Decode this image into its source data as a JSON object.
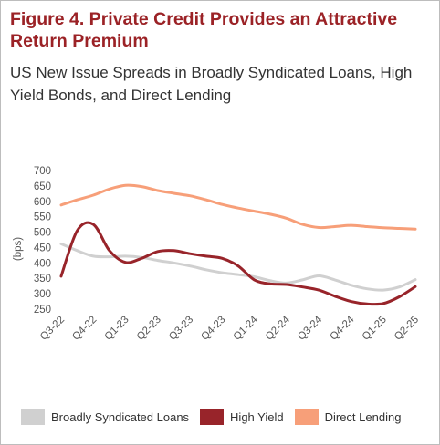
{
  "title": "Figure 4. Private Credit Provides an Attractive Return Premium",
  "subtitle": "US New Issue Spreads in Broadly Syndicated Loans, High Yield Bonds, and Direct Lending",
  "colors": {
    "bsl": "#d0d0d0",
    "hy": "#98242a",
    "dl": "#f79f79",
    "title": "#9b2226"
  },
  "chart_data": {
    "type": "line",
    "ylabel": "(bps)",
    "ylim": [
      250,
      700
    ],
    "yticks": [
      250,
      300,
      350,
      400,
      450,
      500,
      550,
      600,
      650,
      700
    ],
    "categories": [
      "Q3-22",
      "Q4-22",
      "Q1-23",
      "Q2-23",
      "Q3-23",
      "Q4-23",
      "Q1-24",
      "Q2-24",
      "Q3-24",
      "Q4-24",
      "Q1-25",
      "Q2-25"
    ],
    "grid": false,
    "legend_position": "bottom",
    "series": [
      {
        "name": "Broadly Syndicated Loans",
        "color_key": "bsl",
        "x": [
          0,
          0.5,
          1,
          1.5,
          2,
          2.5,
          3,
          3.5,
          4,
          4.5,
          5,
          5.5,
          6,
          6.5,
          7,
          7.5,
          8,
          8.5,
          9,
          9.5,
          10,
          10.5,
          11
        ],
        "y": [
          462,
          440,
          422,
          420,
          422,
          418,
          408,
          400,
          390,
          378,
          368,
          362,
          355,
          342,
          335,
          345,
          358,
          345,
          328,
          316,
          312,
          322,
          346
        ]
      },
      {
        "name": "High Yield",
        "color_key": "hy",
        "x": [
          0,
          0.5,
          1,
          1.5,
          2,
          2.5,
          3,
          3.5,
          4,
          4.5,
          5,
          5.5,
          6,
          6.5,
          7,
          7.5,
          8,
          8.5,
          9,
          9.5,
          10,
          10.5,
          11
        ],
        "y": [
          357,
          505,
          525,
          440,
          402,
          415,
          437,
          440,
          430,
          422,
          415,
          390,
          345,
          332,
          330,
          322,
          312,
          292,
          275,
          267,
          268,
          290,
          323
        ]
      },
      {
        "name": "Direct Lending",
        "color_key": "dl",
        "x": [
          0,
          0.5,
          1,
          1.5,
          2,
          2.5,
          3,
          3.5,
          4,
          4.5,
          5,
          5.5,
          6,
          6.5,
          7,
          7.5,
          8,
          8.5,
          9,
          9.5,
          10,
          10.5,
          11
        ],
        "y": [
          588,
          605,
          620,
          640,
          652,
          648,
          635,
          626,
          618,
          605,
          590,
          578,
          568,
          558,
          545,
          525,
          515,
          518,
          522,
          518,
          514,
          512,
          510
        ]
      }
    ]
  }
}
